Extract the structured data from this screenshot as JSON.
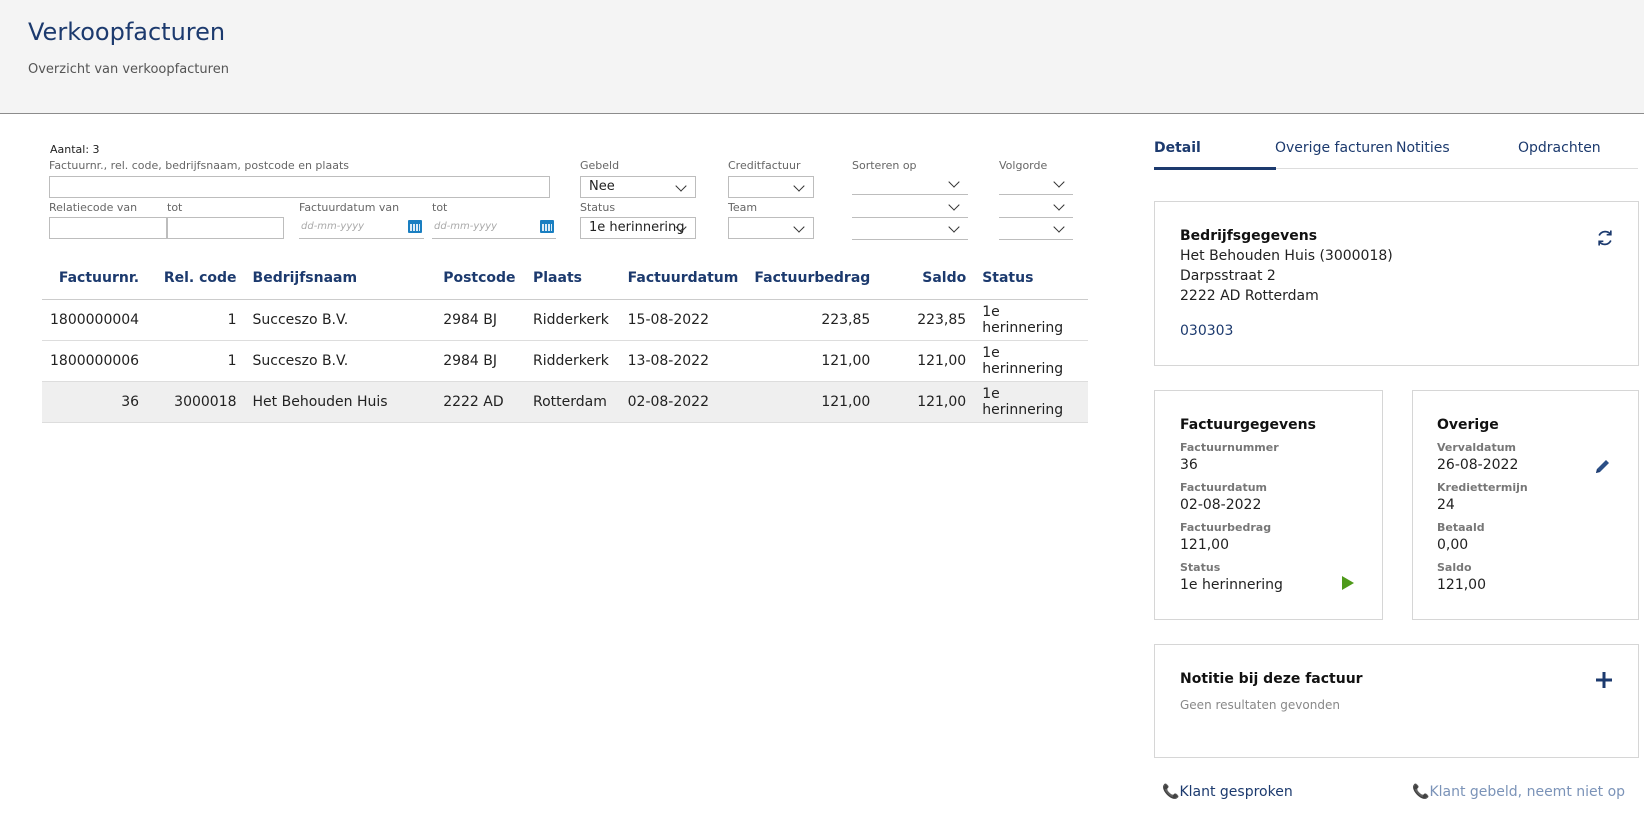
{
  "header": {
    "title": "Verkoopfacturen",
    "subtitle": "Overzicht van verkoopfacturen"
  },
  "filters": {
    "count": "Aantal: 3",
    "search_label": "Factuurnr., rel. code, bedrijfsnaam, postcode en plaats",
    "search_value": "",
    "gebeld_label": "Gebeld",
    "gebeld_value": "Nee",
    "creditfactuur_label": "Creditfactuur",
    "creditfactuur_value": "",
    "sorteren_label": "Sorteren op",
    "volgorde_label": "Volgorde",
    "relcode_van_label": "Relatiecode van",
    "relcode_tot_label": "tot",
    "datum_van_label": "Factuurdatum van",
    "datum_tot_label": "tot",
    "datum_placeholder": "dd-mm-yyyy",
    "status_label": "Status",
    "status_value": "1e herinnering",
    "team_label": "Team",
    "team_value": ""
  },
  "table": {
    "columns": [
      "Factuurnr.",
      "Rel. code",
      "Bedrijfsnaam",
      "Postcode",
      "Plaats",
      "Factuurdatum",
      "Factuurbedrag",
      "Saldo",
      "Status"
    ],
    "rows": [
      [
        "1800000004",
        "1",
        "Succeszo B.V.",
        "2984 BJ",
        "Ridderkerk",
        "15-08-2022",
        "223,85",
        "223,85",
        "1e herinnering"
      ],
      [
        "1800000006",
        "1",
        "Succeszo B.V.",
        "2984 BJ",
        "Ridderkerk",
        "13-08-2022",
        "121,00",
        "121,00",
        "1e herinnering"
      ],
      [
        "36",
        "3000018",
        "Het Behouden Huis",
        "2222 AD",
        "Rotterdam",
        "02-08-2022",
        "121,00",
        "121,00",
        "1e herinnering"
      ]
    ],
    "selected_row": 2
  },
  "tabs": [
    "Detail",
    "Overige facturen",
    "Notities",
    "Opdrachten"
  ],
  "company": {
    "title": "Bedrijfsgegevens",
    "name": "Het Behouden Huis (3000018)",
    "street": "Darpsstraat 2",
    "city": "2222 AD Rotterdam",
    "phone": "030303",
    "refresh_icon": "refresh-icon"
  },
  "invoice": {
    "title": "Factuurgegevens",
    "nummer_label": "Factuurnummer",
    "nummer": "36",
    "datum_label": "Factuurdatum",
    "datum": "02-08-2022",
    "bedrag_label": "Factuurbedrag",
    "bedrag": "121,00",
    "status_label": "Status",
    "status": "1e herinnering"
  },
  "other": {
    "title": "Overige",
    "vervaldatum_label": "Vervaldatum",
    "vervaldatum": "26-08-2022",
    "krediettermijn_label": "Krediettermijn",
    "krediettermijn": "24",
    "betaald_label": "Betaald",
    "betaald": "0,00",
    "saldo_label": "Saldo",
    "saldo": "121,00"
  },
  "note": {
    "title": "Notitie bij deze factuur",
    "empty": "Geen resultaten gevonden"
  },
  "actions": {
    "spoken": "Klant gesproken",
    "no_answer": "Klant gebeld, neemt niet op"
  },
  "colors": {
    "accent": "#1c3a6e",
    "play": "#4e9a1a",
    "calendar": "#1a7fc1"
  }
}
